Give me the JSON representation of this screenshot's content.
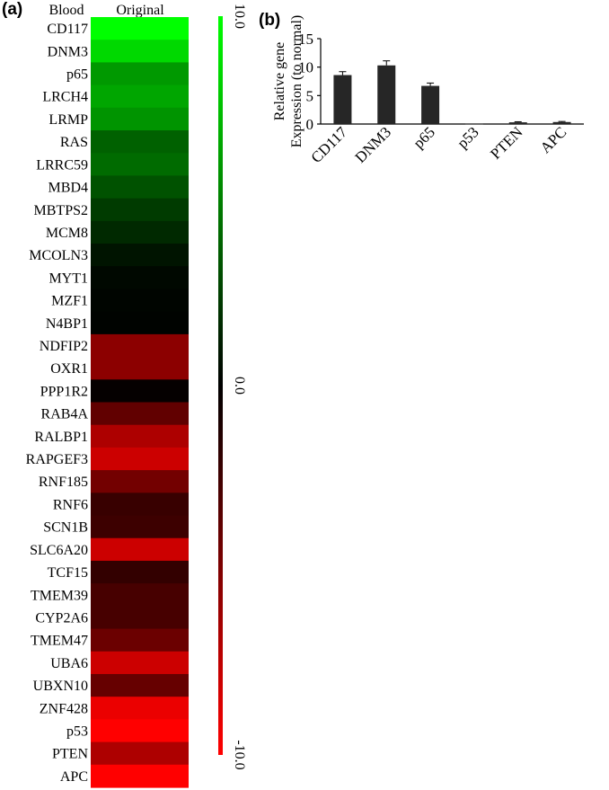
{
  "panels": {
    "a_label": "(a)",
    "b_label": "(b)"
  },
  "chart_data": [
    {
      "type": "heatmap",
      "row_header": "Blood",
      "column_header": "Original",
      "rows": [
        {
          "gene": "CD117",
          "value": 10.0
        },
        {
          "gene": "DNM3",
          "value": 8.5
        },
        {
          "gene": "p65",
          "value": 6.0
        },
        {
          "gene": "LRCH4",
          "value": 6.5
        },
        {
          "gene": "LRMP",
          "value": 5.8
        },
        {
          "gene": "RAS",
          "value": 3.8
        },
        {
          "gene": "LRRC59",
          "value": 4.2
        },
        {
          "gene": "MBD4",
          "value": 3.2
        },
        {
          "gene": "MBTPS2",
          "value": 2.3
        },
        {
          "gene": "MCM8",
          "value": 1.6
        },
        {
          "gene": "MCOLN3",
          "value": 0.8
        },
        {
          "gene": "MYT1",
          "value": 0.3
        },
        {
          "gene": "MZF1",
          "value": 0.2
        },
        {
          "gene": "N4BP1",
          "value": 0.1
        },
        {
          "gene": "NDFIP2",
          "value": -5.5
        },
        {
          "gene": "OXR1",
          "value": -5.5
        },
        {
          "gene": "PPP1R2",
          "value": -0.2
        },
        {
          "gene": "RAB4A",
          "value": -3.8
        },
        {
          "gene": "RALBP1",
          "value": -6.8
        },
        {
          "gene": "RAPGEF3",
          "value": -8.0
        },
        {
          "gene": "RNF185",
          "value": -4.5
        },
        {
          "gene": "RNF6",
          "value": -2.2
        },
        {
          "gene": "SCN1B",
          "value": -2.4
        },
        {
          "gene": "SLC6A20",
          "value": -8.0
        },
        {
          "gene": "TCF15",
          "value": -2.0
        },
        {
          "gene": "TMEM39",
          "value": -2.8
        },
        {
          "gene": "CYP2A6",
          "value": -2.8
        },
        {
          "gene": "TMEM47",
          "value": -4.2
        },
        {
          "gene": "UBA6",
          "value": -8.0
        },
        {
          "gene": "UBXN10",
          "value": -4.0
        },
        {
          "gene": "ZNF428",
          "value": -9.2
        },
        {
          "gene": "p53",
          "value": -10.0
        },
        {
          "gene": "PTEN",
          "value": -6.8
        },
        {
          "gene": "APC",
          "value": -10.0
        }
      ],
      "color_scale": {
        "low": "#ff0000",
        "mid": "#000000",
        "high": "#00ff00",
        "range": [
          -10.0,
          10.0
        ]
      },
      "colorbar_ticks": [
        "10.0",
        "0.0",
        "-10.0"
      ]
    },
    {
      "type": "bar",
      "categories": [
        "CD117",
        "DNM3",
        "p65",
        "p53",
        "PTEN",
        "APC"
      ],
      "values": [
        8.6,
        10.3,
        6.7,
        0.05,
        0.3,
        0.35
      ],
      "errors": [
        0.6,
        0.8,
        0.5,
        0.05,
        0.1,
        0.1
      ],
      "ylabel": "Relative gene Expression (to normal)",
      "ylabel_lines": [
        "Relative gene",
        "Expression (to normal)"
      ],
      "ylim": [
        0,
        15
      ],
      "yticks": [
        0,
        5,
        10,
        15
      ],
      "bar_color": "#262626"
    }
  ]
}
